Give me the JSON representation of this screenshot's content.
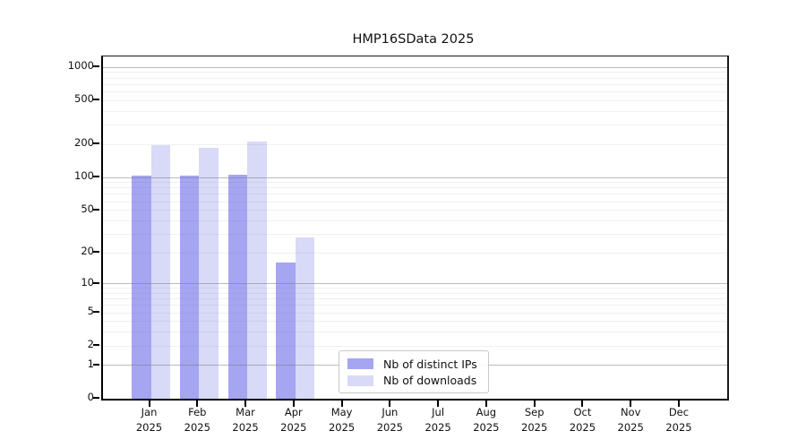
{
  "chart_data": {
    "type": "bar",
    "title": "HMP16SData 2025",
    "categories": [
      "Jan",
      "Feb",
      "Mar",
      "Apr",
      "May",
      "Jun",
      "Jul",
      "Aug",
      "Sep",
      "Oct",
      "Nov",
      "Dec"
    ],
    "year": "2025",
    "series": [
      {
        "name": "Nb of distinct IPs",
        "color": "#a5a5f2",
        "values": [
          103,
          103,
          106,
          16,
          0,
          0,
          0,
          0,
          0,
          0,
          0,
          0
        ]
      },
      {
        "name": "Nb of downloads",
        "color": "#d9d9f8",
        "values": [
          196,
          186,
          211,
          28,
          0,
          0,
          0,
          0,
          0,
          0,
          0,
          0
        ]
      }
    ],
    "xlabel": "",
    "ylabel": "",
    "y_axis": {
      "scale": "log10(1+x)",
      "tick_values": [
        0,
        1,
        2,
        5,
        10,
        20,
        50,
        100,
        200,
        500,
        1000
      ],
      "tick_labels": [
        "0",
        "1",
        "2",
        "5",
        "10",
        "20",
        "50",
        "100",
        "200",
        "500",
        "1000"
      ],
      "range_top_value": 1000
    },
    "grid": {
      "major_lines": [
        1,
        10,
        100,
        1000
      ],
      "minor_pattern": "2-9 per decade"
    },
    "legend": {
      "position": "bottom-center-inside",
      "entries": [
        "Nb of distinct IPs",
        "Nb of downloads"
      ]
    }
  }
}
